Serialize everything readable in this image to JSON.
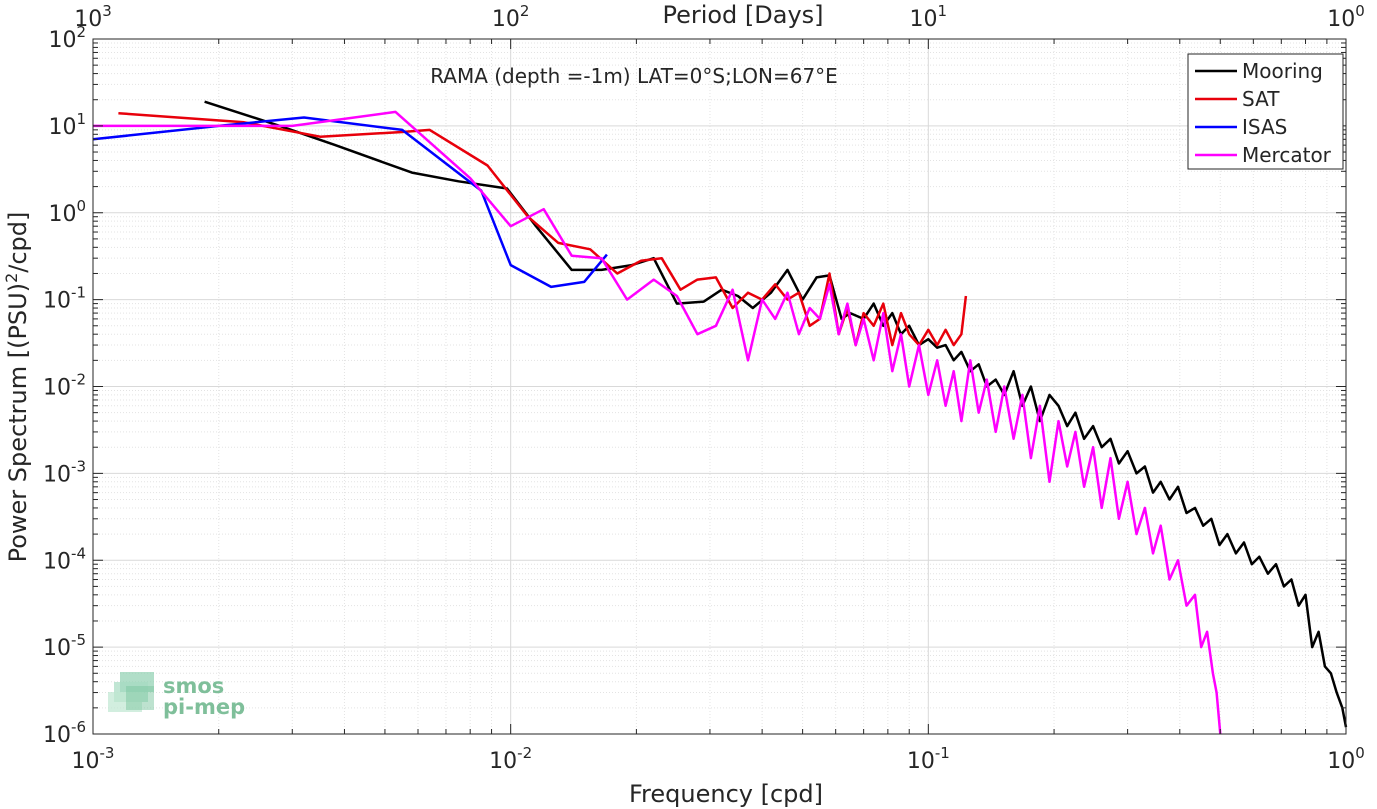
{
  "chart_data": {
    "type": "line",
    "title": "",
    "annotation": "RAMA (depth =-1m) LAT=0°S;LON=67°E",
    "xlabel": "Frequency [cpd]",
    "ylabel": "Power Spectrum [(PSU)",
    "ylabel_sup": "2",
    "ylabel_tail": "/cpd]",
    "x2label": "Period [Days]",
    "xscale": "log",
    "yscale": "log",
    "xlim": [
      0.001,
      1
    ],
    "ylim": [
      1e-06,
      100
    ],
    "grid": true,
    "legend_position": "top-right",
    "x_ticks": [
      {
        "base": "10",
        "exp": "-3",
        "value": 0.001
      },
      {
        "base": "10",
        "exp": "-2",
        "value": 0.01
      },
      {
        "base": "10",
        "exp": "-1",
        "value": 0.1
      },
      {
        "base": "10",
        "exp": "0",
        "value": 1
      }
    ],
    "y_ticks": [
      {
        "base": "10",
        "exp": "-6",
        "value": 1e-06
      },
      {
        "base": "10",
        "exp": "-5",
        "value": 1e-05
      },
      {
        "base": "10",
        "exp": "-4",
        "value": 0.0001
      },
      {
        "base": "10",
        "exp": "-3",
        "value": 0.001
      },
      {
        "base": "10",
        "exp": "-2",
        "value": 0.01
      },
      {
        "base": "10",
        "exp": "-1",
        "value": 0.1
      },
      {
        "base": "10",
        "exp": "0",
        "value": 1
      },
      {
        "base": "10",
        "exp": "1",
        "value": 10
      },
      {
        "base": "10",
        "exp": "2",
        "value": 100
      }
    ],
    "x2_ticks": [
      {
        "base": "10",
        "exp": "3",
        "value": 0.001
      },
      {
        "base": "10",
        "exp": "2",
        "value": 0.01
      },
      {
        "base": "10",
        "exp": "1",
        "value": 0.1
      },
      {
        "base": "10",
        "exp": "0",
        "value": 1
      }
    ],
    "series": [
      {
        "name": "Mooring",
        "color": "#000000",
        "x": [
          0.00185,
          0.0028,
          0.0038,
          0.0058,
          0.0075,
          0.0098,
          0.0115,
          0.014,
          0.0165,
          0.0195,
          0.022,
          0.025,
          0.029,
          0.032,
          0.035,
          0.038,
          0.042,
          0.046,
          0.05,
          0.054,
          0.058,
          0.062,
          0.065,
          0.07,
          0.074,
          0.078,
          0.082,
          0.086,
          0.09,
          0.095,
          0.1,
          0.105,
          0.11,
          0.115,
          0.12,
          0.126,
          0.132,
          0.138,
          0.145,
          0.152,
          0.16,
          0.168,
          0.176,
          0.185,
          0.195,
          0.205,
          0.215,
          0.225,
          0.236,
          0.248,
          0.26,
          0.273,
          0.286,
          0.3,
          0.315,
          0.33,
          0.345,
          0.36,
          0.378,
          0.396,
          0.415,
          0.435,
          0.455,
          0.476,
          0.498,
          0.52,
          0.545,
          0.57,
          0.595,
          0.62,
          0.65,
          0.68,
          0.71,
          0.74,
          0.77,
          0.8,
          0.83,
          0.86,
          0.89,
          0.92,
          0.95,
          0.98,
          1.0
        ],
        "y": [
          19,
          10,
          6,
          2.9,
          2.3,
          1.9,
          0.7,
          0.22,
          0.22,
          0.25,
          0.3,
          0.09,
          0.095,
          0.13,
          0.11,
          0.08,
          0.12,
          0.22,
          0.1,
          0.18,
          0.19,
          0.06,
          0.07,
          0.06,
          0.09,
          0.05,
          0.07,
          0.04,
          0.05,
          0.03,
          0.035,
          0.028,
          0.03,
          0.02,
          0.025,
          0.015,
          0.018,
          0.01,
          0.012,
          0.008,
          0.015,
          0.006,
          0.01,
          0.004,
          0.008,
          0.006,
          0.0035,
          0.005,
          0.0025,
          0.0035,
          0.002,
          0.0025,
          0.0013,
          0.0018,
          0.001,
          0.0012,
          0.0006,
          0.0008,
          0.0005,
          0.0007,
          0.00035,
          0.0004,
          0.00025,
          0.0003,
          0.00015,
          0.0002,
          0.00012,
          0.00016,
          9e-05,
          0.00011,
          7e-05,
          9e-05,
          5e-05,
          6e-05,
          3e-05,
          4e-05,
          1e-05,
          1.5e-05,
          6e-06,
          5e-06,
          3e-06,
          2e-06,
          1.2e-06
        ]
      },
      {
        "name": "SAT",
        "color": "#e8000b",
        "x": [
          0.00115,
          0.0023,
          0.0035,
          0.0055,
          0.0064,
          0.0088,
          0.011,
          0.013,
          0.0155,
          0.018,
          0.0205,
          0.023,
          0.0255,
          0.028,
          0.031,
          0.034,
          0.037,
          0.04,
          0.043,
          0.046,
          0.049,
          0.052,
          0.055,
          0.058,
          0.061,
          0.064,
          0.067,
          0.07,
          0.074,
          0.078,
          0.082,
          0.086,
          0.09,
          0.095,
          0.1,
          0.105,
          0.11,
          0.115,
          0.12,
          0.123
        ],
        "y": [
          14,
          11,
          7.5,
          8.5,
          9,
          3.5,
          0.9,
          0.45,
          0.38,
          0.2,
          0.28,
          0.3,
          0.13,
          0.17,
          0.18,
          0.08,
          0.12,
          0.1,
          0.15,
          0.1,
          0.12,
          0.05,
          0.06,
          0.2,
          0.04,
          0.08,
          0.03,
          0.07,
          0.05,
          0.09,
          0.03,
          0.07,
          0.04,
          0.03,
          0.045,
          0.03,
          0.045,
          0.03,
          0.04,
          0.11
        ]
      },
      {
        "name": "ISAS",
        "color": "#0000ff",
        "x": [
          0.001,
          0.002,
          0.0032,
          0.0055,
          0.0085,
          0.01,
          0.0125,
          0.015,
          0.017
        ],
        "y": [
          7,
          10,
          12.5,
          9,
          1.8,
          0.25,
          0.14,
          0.16,
          0.33
        ]
      },
      {
        "name": "Mercator",
        "color": "#ff00ff",
        "x": [
          0.001,
          0.003,
          0.0053,
          0.008,
          0.01,
          0.012,
          0.014,
          0.0165,
          0.019,
          0.022,
          0.025,
          0.028,
          0.031,
          0.034,
          0.037,
          0.04,
          0.043,
          0.046,
          0.049,
          0.052,
          0.055,
          0.058,
          0.061,
          0.064,
          0.067,
          0.07,
          0.074,
          0.078,
          0.082,
          0.086,
          0.09,
          0.095,
          0.1,
          0.105,
          0.11,
          0.115,
          0.12,
          0.126,
          0.132,
          0.138,
          0.145,
          0.152,
          0.16,
          0.168,
          0.176,
          0.185,
          0.195,
          0.205,
          0.215,
          0.225,
          0.236,
          0.248,
          0.26,
          0.273,
          0.286,
          0.3,
          0.315,
          0.33,
          0.345,
          0.36,
          0.378,
          0.396,
          0.415,
          0.435,
          0.45,
          0.465,
          0.48,
          0.49,
          0.5
        ],
        "y": [
          10,
          10,
          14.5,
          2.5,
          0.7,
          1.1,
          0.32,
          0.3,
          0.1,
          0.17,
          0.11,
          0.04,
          0.05,
          0.13,
          0.02,
          0.1,
          0.06,
          0.12,
          0.04,
          0.08,
          0.06,
          0.15,
          0.04,
          0.09,
          0.03,
          0.06,
          0.02,
          0.07,
          0.015,
          0.04,
          0.01,
          0.03,
          0.008,
          0.02,
          0.006,
          0.015,
          0.004,
          0.02,
          0.005,
          0.012,
          0.003,
          0.01,
          0.0025,
          0.008,
          0.0015,
          0.006,
          0.0008,
          0.004,
          0.0012,
          0.003,
          0.0007,
          0.002,
          0.0004,
          0.0015,
          0.0003,
          0.0008,
          0.0002,
          0.0004,
          0.00012,
          0.00025,
          6e-05,
          0.0001,
          3e-05,
          4e-05,
          1e-05,
          1.5e-05,
          5e-06,
          3e-06,
          1e-06
        ]
      }
    ],
    "logo": {
      "line1": "smos",
      "line2": "pi-mep"
    }
  }
}
